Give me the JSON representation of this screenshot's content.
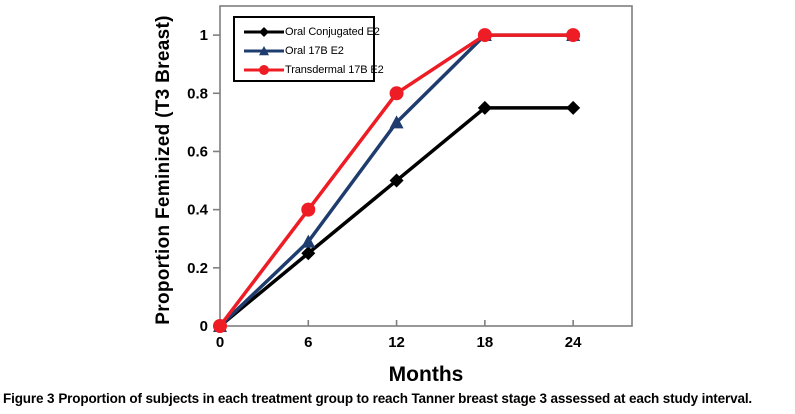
{
  "figure": {
    "caption_prefix": "Figure 3",
    "caption_text": "Proportion of subjects in each treatment group to reach Tanner breast stage 3 assessed at each study interval."
  },
  "chart_data": {
    "type": "line",
    "title": "",
    "xlabel": "Months",
    "ylabel": "Proportion Feminized (T3 Breast)",
    "x": [
      0,
      6,
      12,
      18,
      24
    ],
    "x_ticks": [
      "0",
      "6",
      "12",
      "18",
      "24"
    ],
    "y_ticks": [
      "0",
      "0.2",
      "0.4",
      "0.6",
      "0.8",
      "1"
    ],
    "xlim": [
      0,
      28
    ],
    "ylim": [
      0,
      1.1
    ],
    "grid": false,
    "legend_position": "top-left",
    "axis_color": "#7f7f7f",
    "text_color": "#000000",
    "series": [
      {
        "name": "Oral Conjugated E2",
        "marker": "diamond",
        "color": "#000000",
        "values": [
          0,
          0.25,
          0.5,
          0.75,
          0.75
        ]
      },
      {
        "name": "Oral 17B E2",
        "marker": "triangle",
        "color": "#1e3c6e",
        "values": [
          0,
          0.29,
          0.7,
          1,
          1
        ]
      },
      {
        "name": "Transdermal 17B E2",
        "marker": "circle",
        "color": "#ee1c25",
        "values": [
          0,
          0.4,
          0.8,
          1,
          1
        ]
      }
    ]
  }
}
